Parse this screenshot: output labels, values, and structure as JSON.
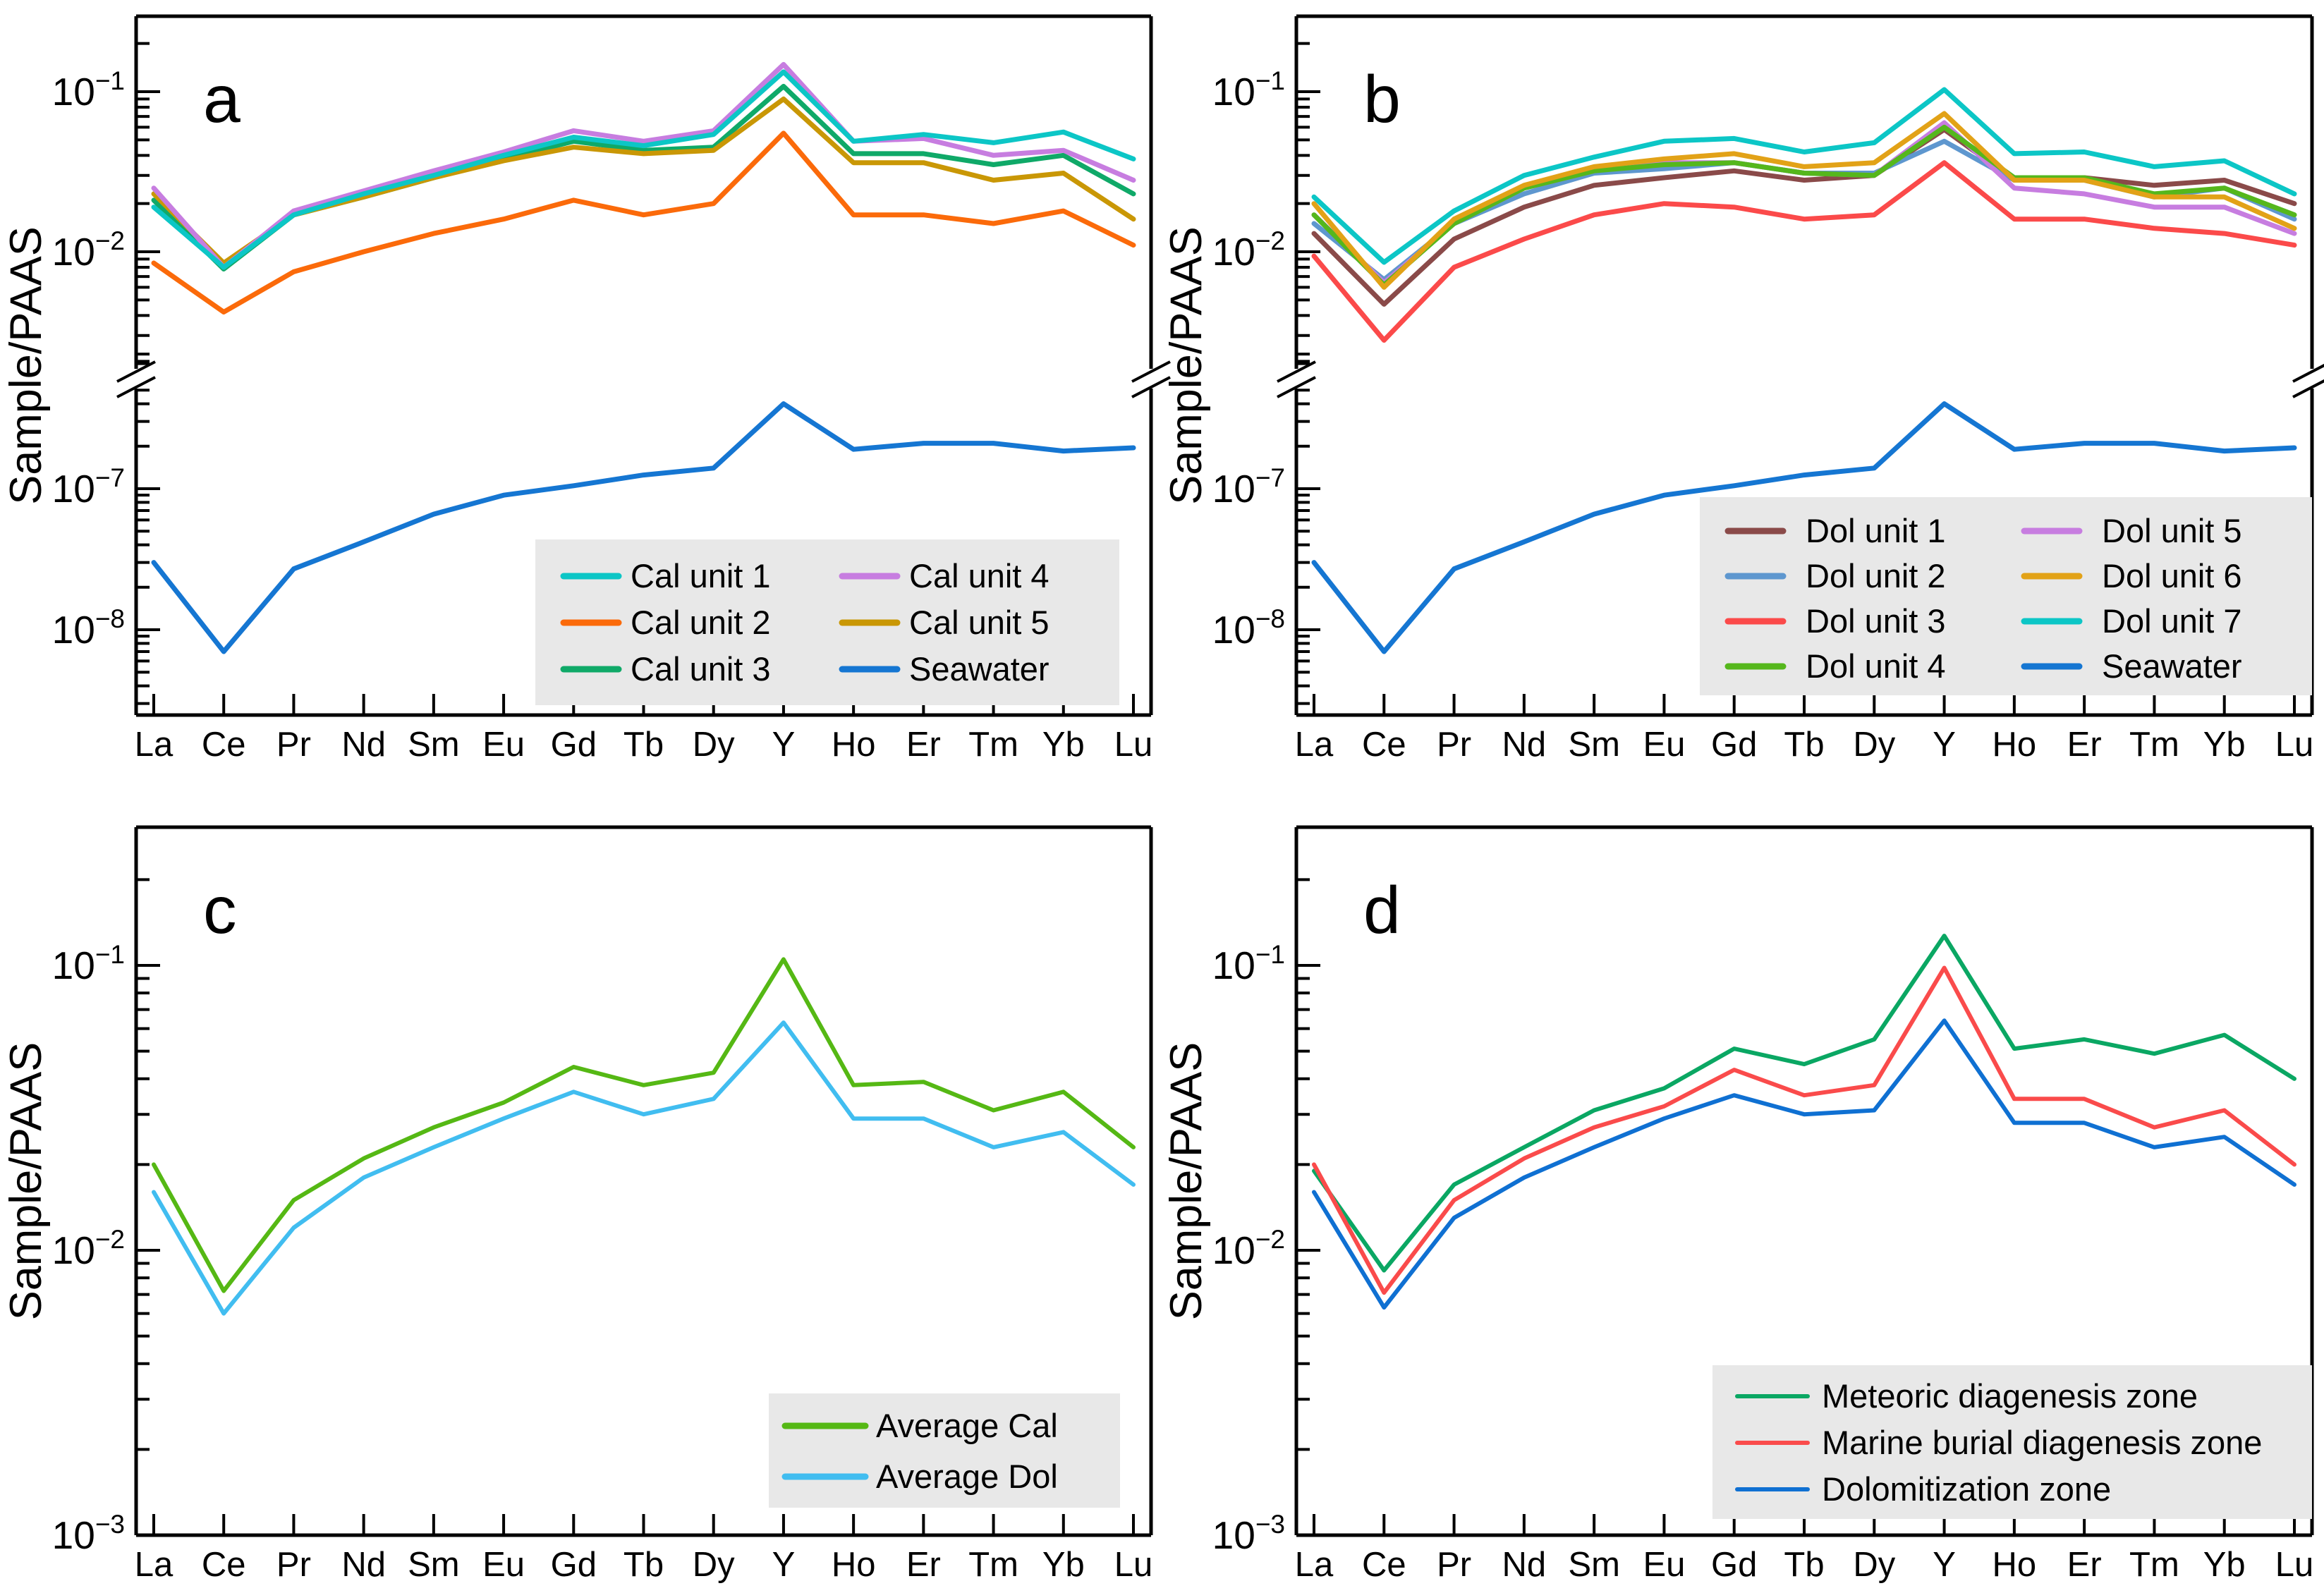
{
  "figure": {
    "background": "#ffffff",
    "legend_background": "#e8e8e8",
    "text_color": "#000000",
    "ylabel": "Sample/PAAS"
  },
  "chart_data": [
    {
      "id": "a",
      "type": "line",
      "panel_label": "a",
      "ylabel": "Sample/PAAS",
      "x_categories": [
        "La",
        "Ce",
        "Pr",
        "Nd",
        "Sm",
        "Eu",
        "Gd",
        "Tb",
        "Dy",
        "Y",
        "Ho",
        "Er",
        "Tm",
        "Yb",
        "Lu"
      ],
      "y_scale": "log",
      "y_axis_broken": true,
      "y_ticks": [
        {
          "label": "10^−1",
          "value": 0.1
        },
        {
          "label": "10^−2",
          "value": 0.01
        },
        {
          "label": "10^−7",
          "value": 1e-07
        },
        {
          "label": "10^−8",
          "value": 1e-08
        }
      ],
      "ylim_upper": [
        0.0016,
        0.28
      ],
      "ylim_lower": [
        2.5e-09,
        4.5e-07
      ],
      "grid": false,
      "legend_position": "inside-bottom-right",
      "legend_columns": 2,
      "series": [
        {
          "name": "Cal unit 1",
          "color": "#0cc6c6",
          "values": [
            0.019,
            0.008,
            0.017,
            0.023,
            0.03,
            0.04,
            0.052,
            0.046,
            0.054,
            0.133,
            0.049,
            0.054,
            0.048,
            0.056,
            0.038
          ]
        },
        {
          "name": "Cal unit 2",
          "color": "#fb6a0a",
          "values": [
            0.0085,
            0.0042,
            0.0075,
            0.01,
            0.013,
            0.016,
            0.021,
            0.017,
            0.02,
            0.055,
            0.017,
            0.017,
            0.015,
            0.018,
            0.011
          ]
        },
        {
          "name": "Cal unit 3",
          "color": "#0fa968",
          "values": [
            0.021,
            0.0078,
            0.017,
            0.022,
            0.029,
            0.038,
            0.049,
            0.043,
            0.045,
            0.108,
            0.041,
            0.041,
            0.035,
            0.04,
            0.023
          ]
        },
        {
          "name": "Cal unit 4",
          "color": "#c77de0",
          "values": [
            0.025,
            0.008,
            0.018,
            0.024,
            0.032,
            0.042,
            0.057,
            0.049,
            0.057,
            0.148,
            0.049,
            0.051,
            0.04,
            0.043,
            0.028
          ]
        },
        {
          "name": "Cal unit 5",
          "color": "#c99705",
          "values": [
            0.023,
            0.0085,
            0.017,
            0.022,
            0.029,
            0.037,
            0.045,
            0.041,
            0.043,
            0.09,
            0.036,
            0.036,
            0.028,
            0.031,
            0.016
          ]
        },
        {
          "name": "Seawater",
          "color": "#1576d2",
          "values": [
            3e-08,
            7e-09,
            2.7e-08,
            4.2e-08,
            6.6e-08,
            9e-08,
            1.05e-07,
            1.25e-07,
            1.4e-07,
            4e-07,
            1.9e-07,
            2.1e-07,
            2.1e-07,
            1.85e-07,
            1.95e-07
          ]
        }
      ]
    },
    {
      "id": "b",
      "type": "line",
      "panel_label": "b",
      "ylabel": "Sample/PAAS",
      "x_categories": [
        "La",
        "Ce",
        "Pr",
        "Nd",
        "Sm",
        "Eu",
        "Gd",
        "Tb",
        "Dy",
        "Y",
        "Ho",
        "Er",
        "Tm",
        "Yb",
        "Lu"
      ],
      "y_scale": "log",
      "y_axis_broken": true,
      "y_ticks": [
        {
          "label": "10^−1",
          "value": 0.1
        },
        {
          "label": "10^−2",
          "value": 0.01
        },
        {
          "label": "10^−7",
          "value": 1e-07
        },
        {
          "label": "10^−8",
          "value": 1e-08
        }
      ],
      "ylim_upper": [
        0.0016,
        0.28
      ],
      "ylim_lower": [
        2.5e-09,
        4.5e-07
      ],
      "grid": false,
      "legend_position": "inside-bottom-right",
      "legend_columns": 2,
      "series": [
        {
          "name": "Dol unit 1",
          "color": "#8a4a49",
          "values": [
            0.013,
            0.0047,
            0.012,
            0.019,
            0.026,
            0.029,
            0.032,
            0.028,
            0.03,
            0.058,
            0.028,
            0.029,
            0.026,
            0.028,
            0.02
          ]
        },
        {
          "name": "Dol unit 2",
          "color": "#5e97cf",
          "values": [
            0.015,
            0.0067,
            0.015,
            0.023,
            0.031,
            0.033,
            0.036,
            0.031,
            0.031,
            0.049,
            0.028,
            0.028,
            0.022,
            0.025,
            0.016
          ]
        },
        {
          "name": "Dol unit 3",
          "color": "#fb4a4a",
          "values": [
            0.0094,
            0.0028,
            0.008,
            0.012,
            0.017,
            0.02,
            0.019,
            0.016,
            0.017,
            0.036,
            0.016,
            0.016,
            0.014,
            0.013,
            0.011
          ]
        },
        {
          "name": "Dol unit 4",
          "color": "#55b71c",
          "values": [
            0.017,
            0.0062,
            0.015,
            0.025,
            0.032,
            0.035,
            0.036,
            0.031,
            0.03,
            0.06,
            0.029,
            0.029,
            0.023,
            0.025,
            0.017
          ]
        },
        {
          "name": "Dol unit 5",
          "color": "#c77de0",
          "values": [
            0.017,
            0.0064,
            0.015,
            0.025,
            0.032,
            0.036,
            0.036,
            0.031,
            0.03,
            0.064,
            0.025,
            0.023,
            0.019,
            0.019,
            0.013
          ]
        },
        {
          "name": "Dol unit 6",
          "color": "#e2a217",
          "values": [
            0.02,
            0.006,
            0.016,
            0.026,
            0.034,
            0.038,
            0.041,
            0.034,
            0.036,
            0.073,
            0.028,
            0.028,
            0.022,
            0.022,
            0.014
          ]
        },
        {
          "name": "Dol unit 7",
          "color": "#0cc6c6",
          "values": [
            0.022,
            0.0086,
            0.018,
            0.03,
            0.039,
            0.049,
            0.051,
            0.042,
            0.048,
            0.103,
            0.041,
            0.042,
            0.034,
            0.037,
            0.023
          ]
        },
        {
          "name": "Seawater",
          "color": "#1576d2",
          "values": [
            3e-08,
            7e-09,
            2.7e-08,
            4.2e-08,
            6.6e-08,
            9e-08,
            1.05e-07,
            1.25e-07,
            1.4e-07,
            4e-07,
            1.9e-07,
            2.1e-07,
            2.1e-07,
            1.85e-07,
            1.95e-07
          ]
        }
      ]
    },
    {
      "id": "c",
      "type": "line",
      "panel_label": "c",
      "ylabel": "Sample/PAAS",
      "x_categories": [
        "La",
        "Ce",
        "Pr",
        "Nd",
        "Sm",
        "Eu",
        "Gd",
        "Tb",
        "Dy",
        "Y",
        "Ho",
        "Er",
        "Tm",
        "Yb",
        "Lu"
      ],
      "y_scale": "log",
      "y_axis_broken": false,
      "y_ticks": [
        {
          "label": "10^−1",
          "value": 0.1
        },
        {
          "label": "10^−2",
          "value": 0.01
        },
        {
          "label": "10^−3",
          "value": 0.001
        }
      ],
      "ylim": [
        0.001,
        0.28
      ],
      "grid": false,
      "legend_position": "inside-bottom-right",
      "legend_columns": 1,
      "series": [
        {
          "name": "Average Cal",
          "color": "#55b814",
          "values": [
            0.02,
            0.0072,
            0.015,
            0.021,
            0.027,
            0.033,
            0.044,
            0.038,
            0.042,
            0.105,
            0.038,
            0.039,
            0.031,
            0.036,
            0.023
          ]
        },
        {
          "name": "Average Dol",
          "color": "#41bdf0",
          "values": [
            0.016,
            0.006,
            0.012,
            0.018,
            0.023,
            0.029,
            0.036,
            0.03,
            0.034,
            0.063,
            0.029,
            0.029,
            0.023,
            0.026,
            0.017
          ]
        }
      ]
    },
    {
      "id": "d",
      "type": "line",
      "panel_label": "d",
      "ylabel": "Sample/PAAS",
      "x_categories": [
        "La",
        "Ce",
        "Pr",
        "Nd",
        "Sm",
        "Eu",
        "Gd",
        "Tb",
        "Dy",
        "Y",
        "Ho",
        "Er",
        "Tm",
        "Yb",
        "Lu"
      ],
      "y_scale": "log",
      "y_axis_broken": false,
      "y_ticks": [
        {
          "label": "10^−1",
          "value": 0.1
        },
        {
          "label": "10^−2",
          "value": 0.01
        },
        {
          "label": "10^−3",
          "value": 0.001
        }
      ],
      "ylim": [
        0.001,
        0.28
      ],
      "grid": false,
      "legend_position": "inside-bottom-right",
      "legend_columns": 1,
      "series": [
        {
          "name": "Meteoric diagenesis zone",
          "color": "#0aa763",
          "values": [
            0.019,
            0.0085,
            0.017,
            0.023,
            0.031,
            0.037,
            0.051,
            0.045,
            0.055,
            0.127,
            0.051,
            0.055,
            0.049,
            0.057,
            0.04
          ]
        },
        {
          "name": "Marine burial diagenesis zone",
          "color": "#fa4b4b",
          "values": [
            0.02,
            0.0071,
            0.015,
            0.021,
            0.027,
            0.032,
            0.043,
            0.035,
            0.038,
            0.098,
            0.034,
            0.034,
            0.027,
            0.031,
            0.02
          ]
        },
        {
          "name": "Dolomitization zone",
          "color": "#0f70d2",
          "values": [
            0.016,
            0.0063,
            0.013,
            0.018,
            0.023,
            0.029,
            0.035,
            0.03,
            0.031,
            0.064,
            0.028,
            0.028,
            0.023,
            0.025,
            0.017
          ]
        }
      ]
    }
  ]
}
